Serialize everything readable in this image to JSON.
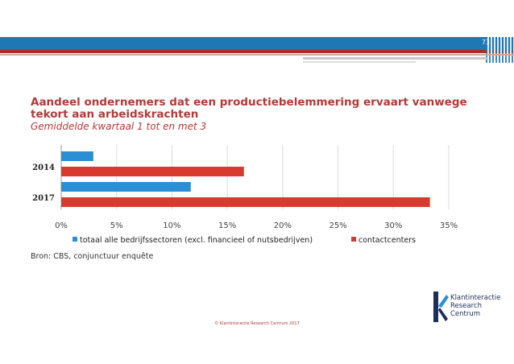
{
  "page": {
    "number": "73",
    "footer": "© Klantinteractie Research Centrum 2017"
  },
  "logo": {
    "lines": [
      "Klantinteractie",
      "Research",
      "Centrum"
    ]
  },
  "chart_data": {
    "type": "bar",
    "orientation": "horizontal",
    "title": "Aandeel ondernemers dat een productiebelemmering ervaart vanwege tekort aan arbeidskrachten",
    "subtitle": "Gemiddelde kwartaal 1 tot en met 3",
    "categories": [
      "2014",
      "2017"
    ],
    "series": [
      {
        "name": "totaal alle bedrijfssectoren (excl. financieel of nutsbedrijven)",
        "color": "#2b8fd6",
        "values": [
          2.9,
          11.7
        ]
      },
      {
        "name": "contactcenters",
        "color": "#d93a2f",
        "values": [
          16.5,
          33.3
        ]
      }
    ],
    "xlim": [
      0,
      35
    ],
    "xticks": [
      "0%",
      "5%",
      "10%",
      "15%",
      "20%",
      "25%",
      "30%",
      "35%"
    ],
    "grid": "vertical",
    "legend_placement": "bottom",
    "source": "Bron: CBS, conjunctuur enquête"
  }
}
